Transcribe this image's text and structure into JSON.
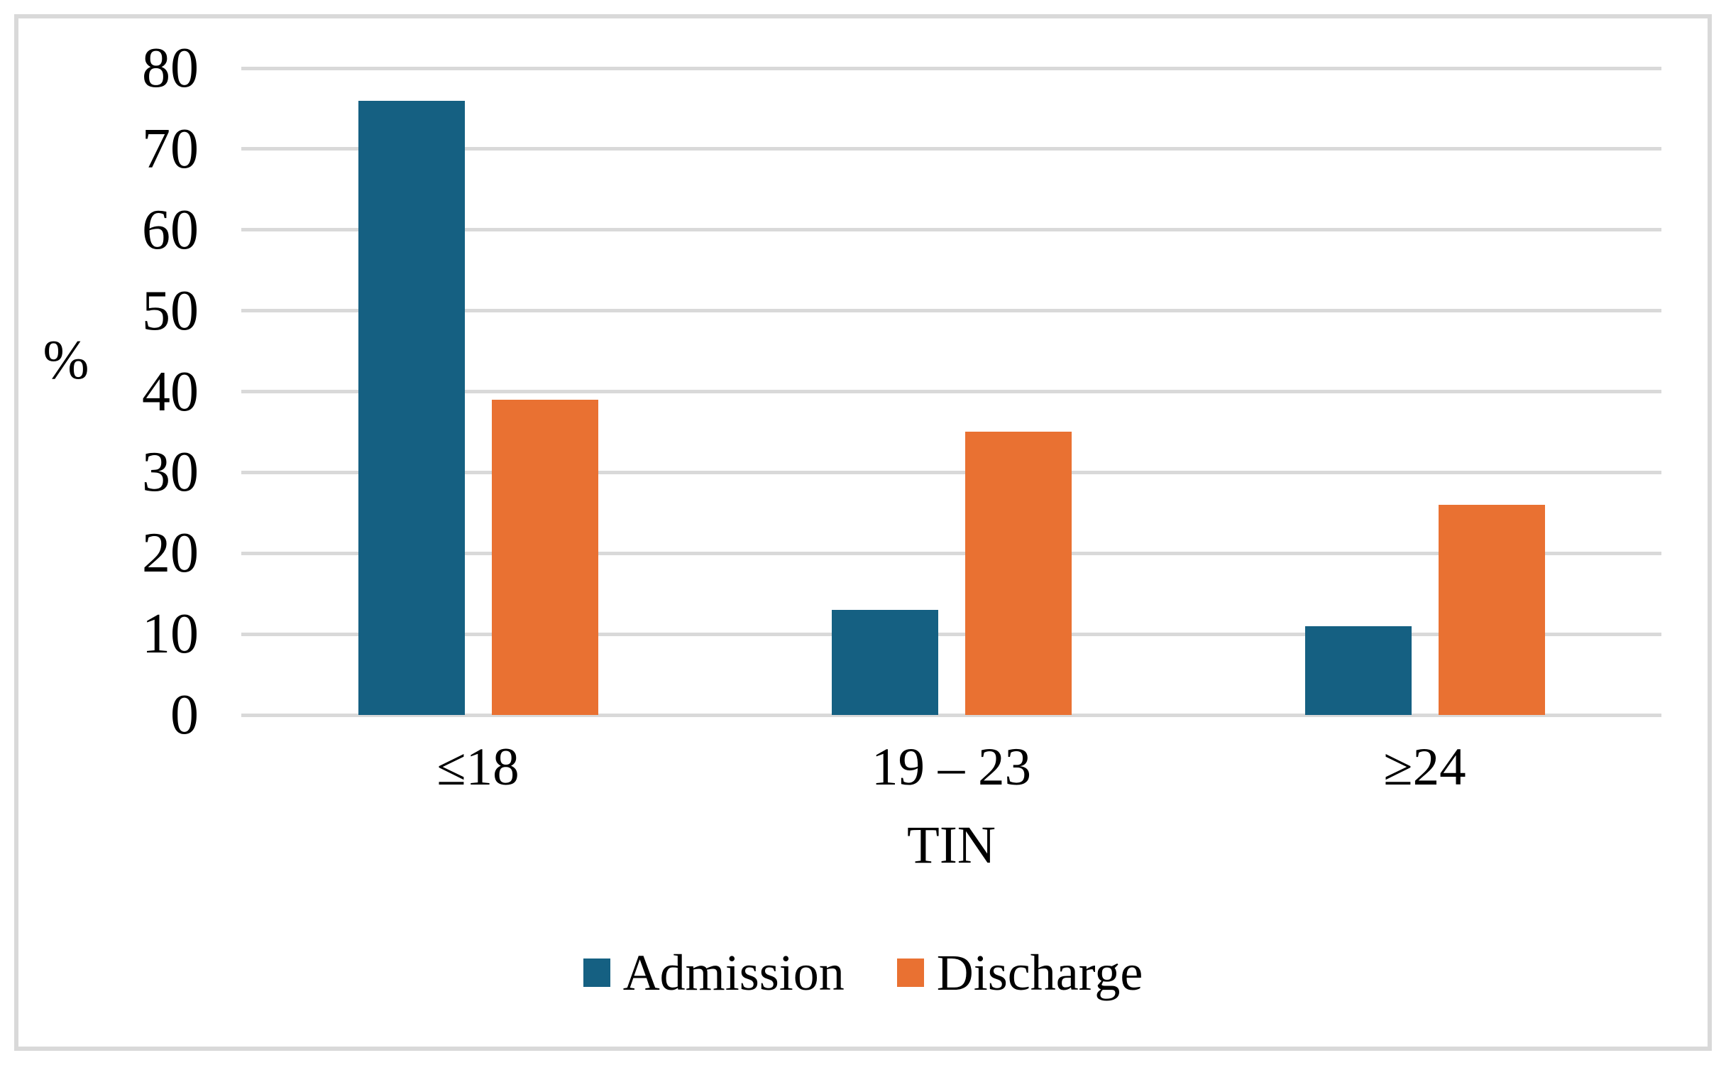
{
  "chart_data": {
    "type": "bar",
    "title": "",
    "categories": [
      "≤18",
      "19 – 23",
      "≥24"
    ],
    "series": [
      {
        "name": "Admission",
        "color": "#156082",
        "values": [
          76,
          13,
          11
        ]
      },
      {
        "name": "Discharge",
        "color": "#E97132",
        "values": [
          39,
          35,
          26
        ]
      }
    ],
    "xlabel": "TIN",
    "ylabel": "%",
    "ylim": [
      0,
      80
    ],
    "yticks": [
      0,
      10,
      20,
      30,
      40,
      50,
      60,
      70,
      80
    ],
    "grid": "horizontal",
    "gridline_color": "#D9D9D9",
    "axis_line_color": "#D9D9D9",
    "legend_position": "bottom",
    "plot_background": "#FFFFFF"
  },
  "frame": {
    "border_color": "#D9D9D9",
    "background": "#FFFFFF"
  }
}
